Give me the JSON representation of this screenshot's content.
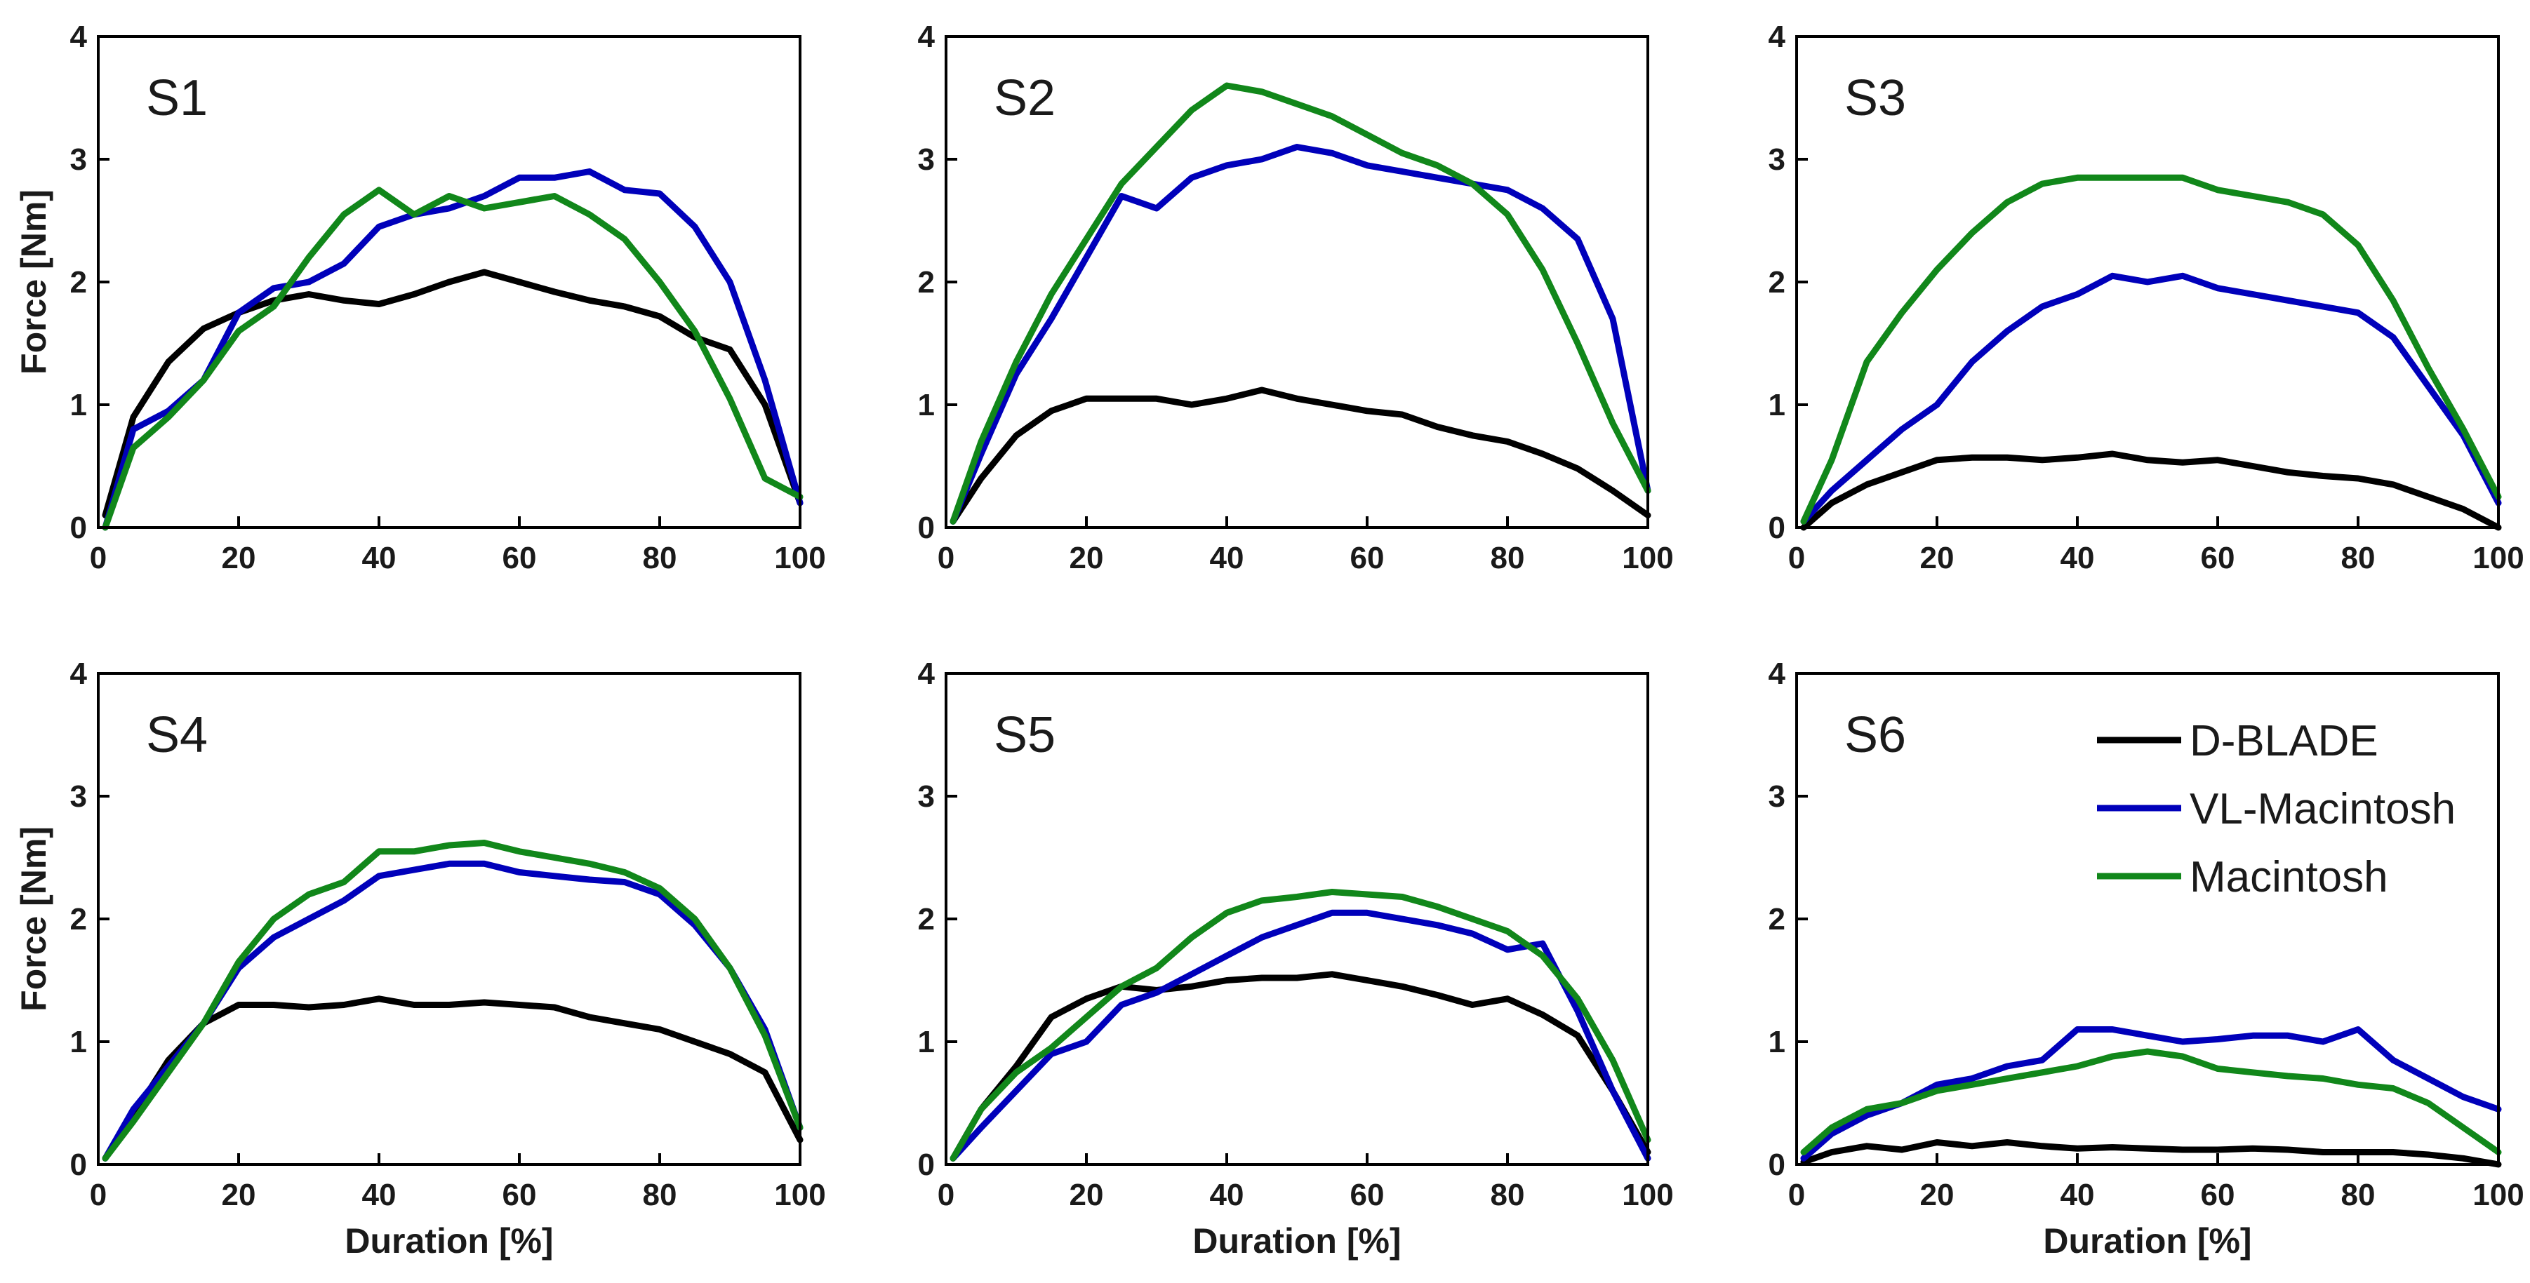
{
  "figure": {
    "series_names": [
      "D-BLADE",
      "VL-Macintosh",
      "Macintosh"
    ],
    "colors": {
      "D-BLADE": "#000000",
      "VL-Macintosh": "#0000ba",
      "Macintosh": "#11871a"
    },
    "legend": {
      "panel": "S6",
      "entries": [
        "D-BLADE",
        "VL-Macintosh",
        "Macintosh"
      ],
      "placement": "top-right"
    }
  },
  "chart_data": [
    {
      "type": "line",
      "panel": "S1",
      "xlabel": "",
      "ylabel": "Force [Nm]",
      "xlim": [
        0,
        100
      ],
      "ylim": [
        0,
        4
      ],
      "xticks": [
        "0",
        "20",
        "40",
        "60",
        "80",
        "100"
      ],
      "yticks": [
        "0",
        "1",
        "2",
        "3",
        "4"
      ],
      "x": [
        1,
        5,
        10,
        15,
        20,
        25,
        30,
        35,
        40,
        45,
        50,
        55,
        60,
        65,
        70,
        75,
        80,
        85,
        90,
        95,
        100
      ],
      "series": [
        {
          "name": "D-BLADE",
          "values": [
            0.1,
            0.9,
            1.35,
            1.62,
            1.75,
            1.85,
            1.9,
            1.85,
            1.82,
            1.9,
            2.0,
            2.08,
            2.0,
            1.92,
            1.85,
            1.8,
            1.72,
            1.55,
            1.45,
            1.0,
            0.2
          ]
        },
        {
          "name": "VL-Macintosh",
          "values": [
            0.0,
            0.8,
            0.95,
            1.2,
            1.75,
            1.95,
            2.0,
            2.15,
            2.45,
            2.55,
            2.6,
            2.7,
            2.85,
            2.85,
            2.9,
            2.75,
            2.72,
            2.45,
            2.0,
            1.2,
            0.2
          ]
        },
        {
          "name": "Macintosh",
          "values": [
            0.0,
            0.65,
            0.9,
            1.2,
            1.6,
            1.8,
            2.2,
            2.55,
            2.75,
            2.55,
            2.7,
            2.6,
            2.65,
            2.7,
            2.55,
            2.35,
            2.0,
            1.6,
            1.05,
            0.4,
            0.25
          ]
        }
      ]
    },
    {
      "type": "line",
      "panel": "S2",
      "xlabel": "",
      "ylabel": "",
      "xlim": [
        0,
        100
      ],
      "ylim": [
        0,
        4
      ],
      "xticks": [
        "0",
        "20",
        "40",
        "60",
        "80",
        "100"
      ],
      "yticks": [
        "0",
        "1",
        "2",
        "3",
        "4"
      ],
      "x": [
        1,
        5,
        10,
        15,
        20,
        25,
        30,
        35,
        40,
        45,
        50,
        55,
        60,
        65,
        70,
        75,
        80,
        85,
        90,
        95,
        100
      ],
      "series": [
        {
          "name": "D-BLADE",
          "values": [
            0.05,
            0.4,
            0.75,
            0.95,
            1.05,
            1.05,
            1.05,
            1.0,
            1.05,
            1.12,
            1.05,
            1.0,
            0.95,
            0.92,
            0.82,
            0.75,
            0.7,
            0.6,
            0.48,
            0.3,
            0.1
          ]
        },
        {
          "name": "VL-Macintosh",
          "values": [
            0.05,
            0.6,
            1.25,
            1.7,
            2.2,
            2.7,
            2.6,
            2.85,
            2.95,
            3.0,
            3.1,
            3.05,
            2.95,
            2.9,
            2.85,
            2.8,
            2.75,
            2.6,
            2.35,
            1.7,
            0.3
          ]
        },
        {
          "name": "Macintosh",
          "values": [
            0.05,
            0.7,
            1.35,
            1.9,
            2.35,
            2.8,
            3.1,
            3.4,
            3.6,
            3.55,
            3.45,
            3.35,
            3.2,
            3.05,
            2.95,
            2.8,
            2.55,
            2.1,
            1.5,
            0.85,
            0.3
          ]
        }
      ]
    },
    {
      "type": "line",
      "panel": "S3",
      "xlabel": "",
      "ylabel": "",
      "xlim": [
        0,
        100
      ],
      "ylim": [
        0,
        4
      ],
      "xticks": [
        "0",
        "20",
        "40",
        "60",
        "80",
        "100"
      ],
      "yticks": [
        "0",
        "1",
        "2",
        "3",
        "4"
      ],
      "x": [
        1,
        5,
        10,
        15,
        20,
        25,
        30,
        35,
        40,
        45,
        50,
        55,
        60,
        65,
        70,
        75,
        80,
        85,
        90,
        95,
        100
      ],
      "series": [
        {
          "name": "D-BLADE",
          "values": [
            0.0,
            0.2,
            0.35,
            0.45,
            0.55,
            0.57,
            0.57,
            0.55,
            0.57,
            0.6,
            0.55,
            0.53,
            0.55,
            0.5,
            0.45,
            0.42,
            0.4,
            0.35,
            0.25,
            0.15,
            0.0
          ]
        },
        {
          "name": "VL-Macintosh",
          "values": [
            0.05,
            0.3,
            0.55,
            0.8,
            1.0,
            1.35,
            1.6,
            1.8,
            1.9,
            2.05,
            2.0,
            2.05,
            1.95,
            1.9,
            1.85,
            1.8,
            1.75,
            1.55,
            1.15,
            0.75,
            0.2
          ]
        },
        {
          "name": "Macintosh",
          "values": [
            0.05,
            0.55,
            1.35,
            1.75,
            2.1,
            2.4,
            2.65,
            2.8,
            2.85,
            2.85,
            2.85,
            2.85,
            2.75,
            2.7,
            2.65,
            2.55,
            2.3,
            1.85,
            1.3,
            0.8,
            0.25
          ]
        }
      ]
    },
    {
      "type": "line",
      "panel": "S4",
      "xlabel": "Duration [%]",
      "ylabel": "Force [Nm]",
      "xlim": [
        0,
        100
      ],
      "ylim": [
        0,
        4
      ],
      "xticks": [
        "0",
        "20",
        "40",
        "60",
        "80",
        "100"
      ],
      "yticks": [
        "0",
        "1",
        "2",
        "3",
        "4"
      ],
      "x": [
        1,
        5,
        10,
        15,
        20,
        25,
        30,
        35,
        40,
        45,
        50,
        55,
        60,
        65,
        70,
        75,
        80,
        85,
        90,
        95,
        100
      ],
      "series": [
        {
          "name": "D-BLADE",
          "values": [
            0.05,
            0.4,
            0.85,
            1.15,
            1.3,
            1.3,
            1.28,
            1.3,
            1.35,
            1.3,
            1.3,
            1.32,
            1.3,
            1.28,
            1.2,
            1.15,
            1.1,
            1.0,
            0.9,
            0.75,
            0.2
          ]
        },
        {
          "name": "VL-Macintosh",
          "values": [
            0.05,
            0.45,
            0.8,
            1.15,
            1.6,
            1.85,
            2.0,
            2.15,
            2.35,
            2.4,
            2.45,
            2.45,
            2.38,
            2.35,
            2.32,
            2.3,
            2.2,
            1.95,
            1.6,
            1.1,
            0.3
          ]
        },
        {
          "name": "Macintosh",
          "values": [
            0.05,
            0.35,
            0.75,
            1.15,
            1.65,
            2.0,
            2.2,
            2.3,
            2.55,
            2.55,
            2.6,
            2.62,
            2.55,
            2.5,
            2.45,
            2.38,
            2.25,
            2.0,
            1.6,
            1.05,
            0.3
          ]
        }
      ]
    },
    {
      "type": "line",
      "panel": "S5",
      "xlabel": "Duration [%]",
      "ylabel": "",
      "xlim": [
        0,
        100
      ],
      "ylim": [
        0,
        4
      ],
      "xticks": [
        "0",
        "20",
        "40",
        "60",
        "80",
        "100"
      ],
      "yticks": [
        "0",
        "1",
        "2",
        "3",
        "4"
      ],
      "x": [
        1,
        5,
        10,
        15,
        20,
        25,
        30,
        35,
        40,
        45,
        50,
        55,
        60,
        65,
        70,
        75,
        80,
        85,
        90,
        95,
        100
      ],
      "series": [
        {
          "name": "D-BLADE",
          "values": [
            0.05,
            0.45,
            0.8,
            1.2,
            1.35,
            1.45,
            1.42,
            1.45,
            1.5,
            1.52,
            1.52,
            1.55,
            1.5,
            1.45,
            1.38,
            1.3,
            1.35,
            1.22,
            1.05,
            0.6,
            0.1
          ]
        },
        {
          "name": "VL-Macintosh",
          "values": [
            0.05,
            0.3,
            0.6,
            0.9,
            1.0,
            1.3,
            1.4,
            1.55,
            1.7,
            1.85,
            1.95,
            2.05,
            2.05,
            2.0,
            1.95,
            1.88,
            1.75,
            1.8,
            1.25,
            0.6,
            0.05
          ]
        },
        {
          "name": "Macintosh",
          "values": [
            0.05,
            0.45,
            0.75,
            0.95,
            1.2,
            1.45,
            1.6,
            1.85,
            2.05,
            2.15,
            2.18,
            2.22,
            2.2,
            2.18,
            2.1,
            2.0,
            1.9,
            1.7,
            1.35,
            0.85,
            0.2
          ]
        }
      ]
    },
    {
      "type": "line",
      "panel": "S6",
      "xlabel": "Duration [%]",
      "ylabel": "",
      "xlim": [
        0,
        100
      ],
      "ylim": [
        0,
        4
      ],
      "xticks": [
        "0",
        "20",
        "40",
        "60",
        "80",
        "100"
      ],
      "yticks": [
        "0",
        "1",
        "2",
        "3",
        "4"
      ],
      "x": [
        1,
        5,
        10,
        15,
        20,
        25,
        30,
        35,
        40,
        45,
        50,
        55,
        60,
        65,
        70,
        75,
        80,
        85,
        90,
        95,
        100
      ],
      "series": [
        {
          "name": "D-BLADE",
          "values": [
            0.02,
            0.1,
            0.15,
            0.12,
            0.18,
            0.15,
            0.18,
            0.15,
            0.13,
            0.14,
            0.13,
            0.12,
            0.12,
            0.13,
            0.12,
            0.1,
            0.1,
            0.1,
            0.08,
            0.05,
            0.0
          ]
        },
        {
          "name": "VL-Macintosh",
          "values": [
            0.05,
            0.25,
            0.4,
            0.5,
            0.65,
            0.7,
            0.8,
            0.85,
            1.1,
            1.1,
            1.05,
            1.0,
            1.02,
            1.05,
            1.05,
            1.0,
            1.1,
            0.85,
            0.7,
            0.55,
            0.45
          ]
        },
        {
          "name": "Macintosh",
          "values": [
            0.1,
            0.3,
            0.45,
            0.5,
            0.6,
            0.65,
            0.7,
            0.75,
            0.8,
            0.88,
            0.92,
            0.88,
            0.78,
            0.75,
            0.72,
            0.7,
            0.65,
            0.62,
            0.5,
            0.3,
            0.1
          ]
        }
      ]
    }
  ]
}
